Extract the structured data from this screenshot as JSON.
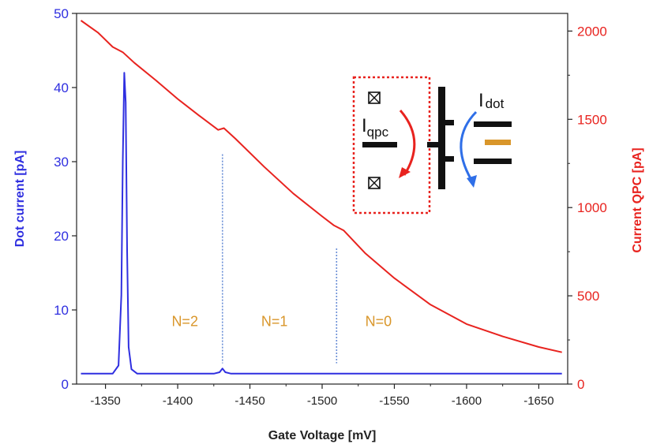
{
  "chart_data": {
    "type": "line",
    "title": "",
    "xlabel": "Gate Voltage [mV]",
    "ylabel_left": "Dot current [pA]",
    "ylabel_right": "Current QPC [pA]",
    "x_axis_reversed": true,
    "xlim": [
      -1330,
      -1670
    ],
    "ylim_left": [
      0,
      50
    ],
    "ylim_right": [
      0,
      2100
    ],
    "x_ticks": [
      -1350,
      -1400,
      -1450,
      -1500,
      -1550,
      -1600,
      -1650
    ],
    "y_ticks_left": [
      0,
      10,
      20,
      30,
      40,
      50
    ],
    "y_ticks_right": [
      0,
      500,
      1000,
      1500,
      2000
    ],
    "grid": false,
    "series": [
      {
        "axis": "left",
        "color": "#2f2fe0",
        "x": [
          -1333,
          -1355,
          -1359,
          -1361,
          -1362,
          -1363,
          -1364,
          -1365,
          -1366,
          -1368,
          -1372,
          -1425,
          -1429,
          -1431,
          -1433,
          -1437,
          -1480,
          -1550,
          -1600,
          -1666
        ],
        "y": [
          1.4,
          1.4,
          2.5,
          12,
          30,
          42,
          38,
          18,
          5,
          2,
          1.4,
          1.4,
          1.6,
          2.1,
          1.6,
          1.4,
          1.4,
          1.4,
          1.4,
          1.4
        ]
      },
      {
        "axis": "right",
        "color": "#e8231f",
        "x": [
          -1333,
          -1345,
          -1355,
          -1362,
          -1370,
          -1385,
          -1400,
          -1415,
          -1428,
          -1432,
          -1440,
          -1460,
          -1480,
          -1500,
          -1508,
          -1515,
          -1530,
          -1550,
          -1575,
          -1600,
          -1625,
          -1650,
          -1666
        ],
        "y": [
          2060,
          1990,
          1910,
          1880,
          1820,
          1720,
          1615,
          1520,
          1440,
          1450,
          1390,
          1230,
          1080,
          950,
          900,
          870,
          740,
          600,
          450,
          340,
          270,
          210,
          180
        ]
      }
    ],
    "vlines": [
      {
        "x": -1431,
        "y_top": 31,
        "color": "#6b8fd6"
      },
      {
        "x": -1510,
        "y_top": 18.3,
        "color": "#6b8fd6"
      }
    ],
    "annotations": [
      {
        "text": "N=2",
        "x": -1405,
        "y": 7.8
      },
      {
        "text": "N=1",
        "x": -1467,
        "y": 7.8
      },
      {
        "text": "N=0",
        "x": -1539,
        "y": 7.8
      }
    ],
    "inset": {
      "qpc_label": "I",
      "qpc_subscript": "qpc",
      "dot_label": "I",
      "dot_subscript": "dot",
      "qpc_arrow_color": "#e8231f",
      "dot_arrow_color": "#2f6fe8",
      "box_color": "#e8231f",
      "level_color": "#d9962a"
    }
  }
}
